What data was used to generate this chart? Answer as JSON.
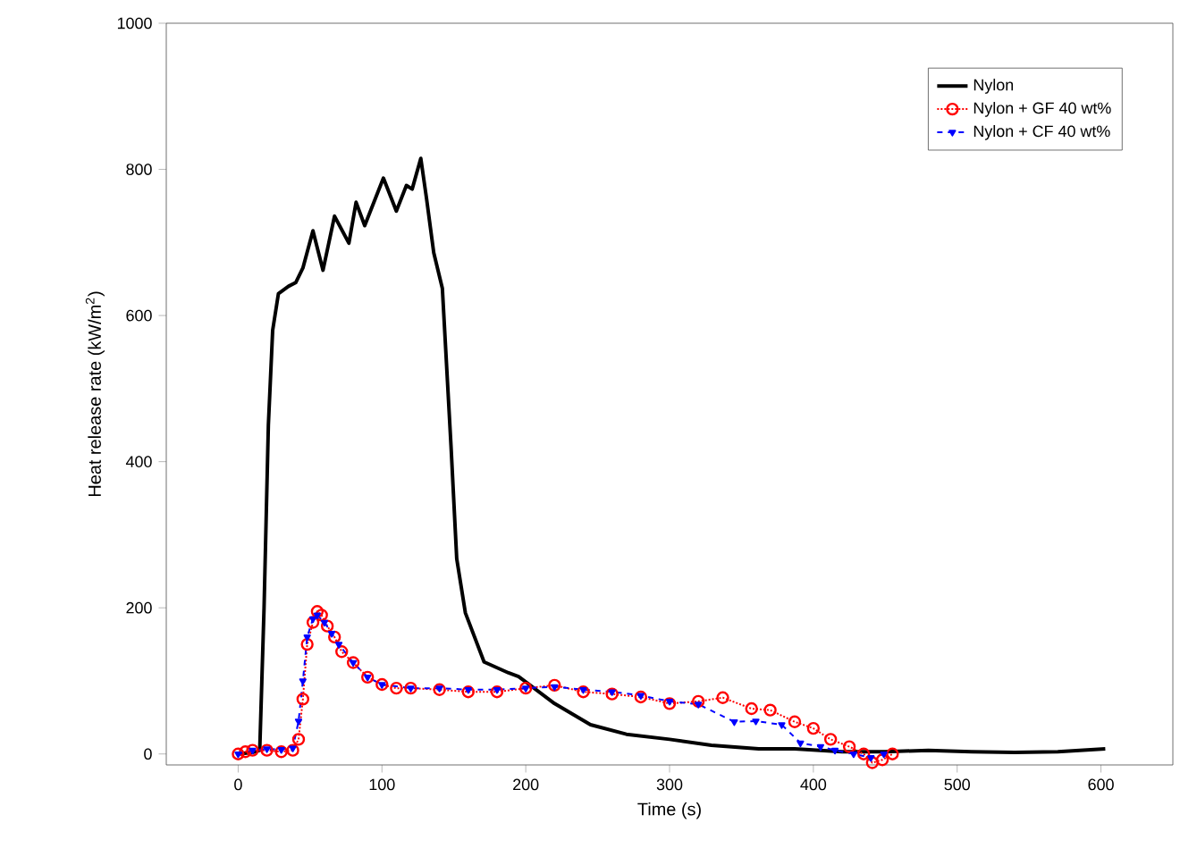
{
  "chart_data": {
    "type": "line",
    "xlabel": "Time (s)",
    "ylabel": "Heat release rate (kW/m$^{2}$)",
    "xlim": [
      -50,
      650
    ],
    "xticks": [
      0,
      100,
      200,
      300,
      400,
      500,
      600
    ],
    "ylim": [
      -15,
      1000
    ],
    "yticks": [
      0,
      200,
      400,
      600,
      800,
      1000
    ],
    "grid": false,
    "legend": "top right",
    "series": [
      {
        "name": "Nylon",
        "color": "#000000",
        "line_style": "solid",
        "marker": "none",
        "x": [
          0,
          10,
          15,
          18,
          21,
          24,
          28,
          35,
          40,
          45,
          52,
          59,
          67,
          77,
          82,
          88,
          101,
          110,
          117,
          121,
          127,
          131,
          136,
          142,
          148,
          152,
          158,
          171,
          188,
          195,
          220,
          245,
          270,
          300,
          329,
          362,
          387,
          420,
          450,
          480,
          510,
          540,
          570,
          603
        ],
        "values": [
          0,
          2,
          5,
          200,
          450,
          580,
          630,
          640,
          645,
          665,
          716,
          662,
          736,
          699,
          755,
          723,
          788,
          743,
          778,
          773,
          815,
          760,
          686,
          637,
          422,
          267,
          193,
          126,
          111,
          106,
          69,
          40,
          27,
          20,
          12,
          7,
          7,
          3,
          3,
          5,
          3,
          2,
          3,
          7
        ]
      },
      {
        "name": "Nylon + GF 40 wt%",
        "color": "#ff0000",
        "line_style": "dotted",
        "marker": "circle",
        "x": [
          0,
          5,
          10,
          20,
          30,
          38,
          42,
          45,
          48,
          52,
          55,
          58,
          62,
          67,
          72,
          80,
          90,
          100,
          110,
          120,
          140,
          160,
          180,
          200,
          220,
          240,
          260,
          280,
          300,
          320,
          337,
          357,
          370,
          387,
          400,
          412,
          425,
          435,
          441,
          448,
          455
        ],
        "values": [
          0,
          3,
          5,
          5,
          3,
          5,
          20,
          75,
          150,
          180,
          195,
          190,
          175,
          160,
          140,
          125,
          105,
          95,
          90,
          90,
          88,
          85,
          85,
          90,
          94,
          85,
          82,
          78,
          69,
          72,
          77,
          62,
          60,
          44,
          35,
          20,
          10,
          0,
          -12,
          -8,
          0
        ]
      },
      {
        "name": "Nylon + CF 40 wt%",
        "color": "#0000ff",
        "line_style": "dashed",
        "marker": "triangle",
        "x": [
          0,
          10,
          20,
          30,
          38,
          42,
          45,
          48,
          52,
          55,
          60,
          65,
          70,
          80,
          90,
          100,
          120,
          140,
          160,
          180,
          200,
          220,
          240,
          260,
          280,
          300,
          320,
          345,
          360,
          378,
          391,
          405,
          415,
          428,
          440,
          449
        ],
        "values": [
          0,
          5,
          7,
          6,
          8,
          45,
          100,
          160,
          185,
          190,
          180,
          165,
          150,
          125,
          105,
          95,
          90,
          90,
          88,
          88,
          90,
          92,
          88,
          85,
          80,
          72,
          68,
          44,
          45,
          40,
          15,
          10,
          5,
          0,
          -5,
          0
        ]
      }
    ]
  }
}
